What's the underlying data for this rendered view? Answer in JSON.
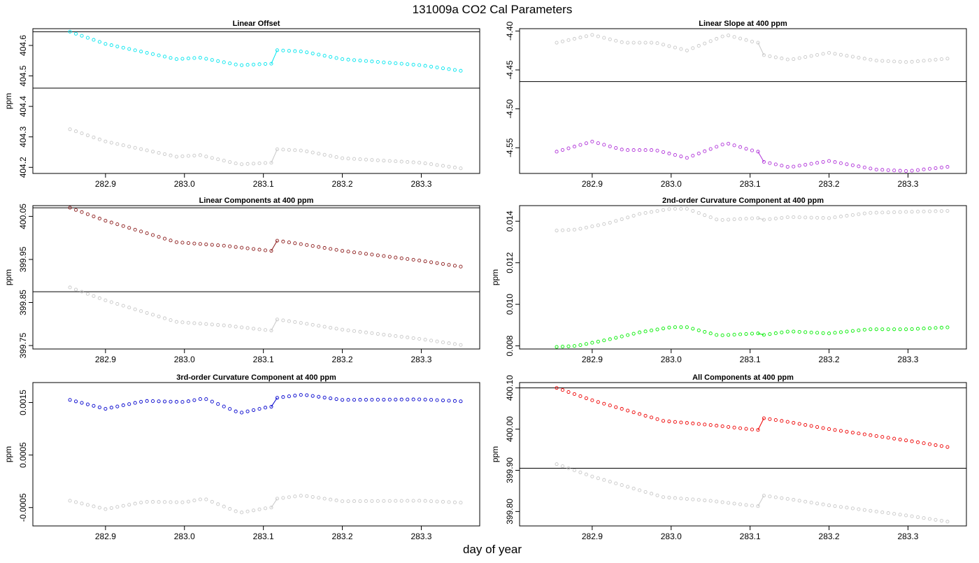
{
  "figure": {
    "title": "131009a   CO2 Cal Parameters",
    "xlabel": "day of year"
  },
  "colors": {
    "gray_series": "#c8c8c8",
    "frame": "#000000",
    "reference_line": "#000000"
  },
  "chart_data": [
    {
      "type": "scatter",
      "title": "Linear Offset",
      "ylabel": "ppm",
      "xlim": [
        282.808,
        283.374
      ],
      "ylim": [
        404.18,
        404.655
      ],
      "xticks": [
        "282.9",
        "283.0",
        "283.1",
        "283.2",
        "283.3"
      ],
      "yticks": [
        "404.2",
        "404.3",
        "404.4",
        "404.5",
        "404.6"
      ],
      "reference_lines": [
        404.46,
        404.645
      ],
      "x_start": 282.855,
      "x_end": 283.355,
      "x_gap": 283.11,
      "series": [
        {
          "color": "#00e5ee",
          "before": [
            [
              282.855,
              404.645
            ],
            [
              282.9,
              404.605
            ],
            [
              282.99,
              404.555
            ],
            [
              283.02,
              404.56
            ],
            [
              283.07,
              404.535
            ],
            [
              283.108,
              404.54
            ]
          ],
          "after": [
            [
              283.112,
              404.585
            ],
            [
              283.15,
              404.58
            ],
            [
              283.2,
              404.555
            ],
            [
              283.3,
              404.535
            ],
            [
              283.355,
              404.515
            ]
          ]
        },
        {
          "color": "#c8c8c8",
          "before": [
            [
              282.855,
              404.325
            ],
            [
              282.9,
              404.285
            ],
            [
              282.99,
              404.235
            ],
            [
              283.02,
              404.24
            ],
            [
              283.07,
              404.21
            ],
            [
              283.108,
              404.215
            ]
          ],
          "after": [
            [
              283.112,
              404.26
            ],
            [
              283.15,
              404.255
            ],
            [
              283.2,
              404.23
            ],
            [
              283.3,
              404.215
            ],
            [
              283.355,
              404.195
            ]
          ]
        }
      ]
    },
    {
      "type": "scatter",
      "title": "Linear Slope at 400 ppm",
      "ylabel": "",
      "xlim": [
        282.808,
        283.374
      ],
      "ylim": [
        -4.583,
        -4.397
      ],
      "xticks": [
        "282.9",
        "283.0",
        "283.1",
        "283.2",
        "283.3"
      ],
      "yticks": [
        "-4.40",
        "-4.45",
        "-4.50",
        "-4.55"
      ],
      "reference_lines": [
        -4.465
      ],
      "x_start": 282.855,
      "x_end": 283.355,
      "x_gap": 283.11,
      "series": [
        {
          "color": "#c8c8c8",
          "before": [
            [
              282.855,
              -4.415
            ],
            [
              282.9,
              -4.405
            ],
            [
              282.94,
              -4.415
            ],
            [
              282.98,
              -4.415
            ],
            [
              283.02,
              -4.425
            ],
            [
              283.07,
              -4.405
            ],
            [
              283.108,
              -4.415
            ]
          ],
          "after": [
            [
              283.112,
              -4.43
            ],
            [
              283.15,
              -4.437
            ],
            [
              283.2,
              -4.428
            ],
            [
              283.26,
              -4.438
            ],
            [
              283.3,
              -4.44
            ],
            [
              283.355,
              -4.435
            ]
          ]
        },
        {
          "color": "#b033d9",
          "before": [
            [
              282.855,
              -4.555
            ],
            [
              282.9,
              -4.542
            ],
            [
              282.94,
              -4.553
            ],
            [
              282.98,
              -4.553
            ],
            [
              283.02,
              -4.563
            ],
            [
              283.07,
              -4.544
            ],
            [
              283.108,
              -4.555
            ]
          ],
          "after": [
            [
              283.112,
              -4.567
            ],
            [
              283.15,
              -4.575
            ],
            [
              283.2,
              -4.567
            ],
            [
              283.26,
              -4.578
            ],
            [
              283.3,
              -4.58
            ],
            [
              283.355,
              -4.574
            ]
          ]
        }
      ]
    },
    {
      "type": "scatter",
      "title": "Linear Components at 400 ppm",
      "ylabel": "ppm",
      "xlim": [
        282.808,
        283.374
      ],
      "ylim": [
        399.742,
        400.075
      ],
      "xticks": [
        "282.9",
        "283.0",
        "283.1",
        "283.2",
        "283.3"
      ],
      "yticks": [
        "399.75",
        "399.85",
        "399.95",
        "400.05"
      ],
      "reference_lines": [
        399.875,
        400.07
      ],
      "x_start": 282.855,
      "x_end": 283.355,
      "x_gap": 283.11,
      "series": [
        {
          "color": "#8b1a1a",
          "before": [
            [
              282.855,
              400.07
            ],
            [
              282.9,
              400.04
            ],
            [
              282.99,
              399.99
            ],
            [
              283.05,
              399.982
            ],
            [
              283.108,
              399.97
            ]
          ],
          "after": [
            [
              283.112,
              399.995
            ],
            [
              283.15,
              399.985
            ],
            [
              283.2,
              399.97
            ],
            [
              283.3,
              399.947
            ],
            [
              283.355,
              399.932
            ]
          ]
        },
        {
          "color": "#c8c8c8",
          "before": [
            [
              282.855,
              399.885
            ],
            [
              282.9,
              399.855
            ],
            [
              282.99,
              399.805
            ],
            [
              283.05,
              399.797
            ],
            [
              283.108,
              399.785
            ]
          ],
          "after": [
            [
              283.112,
              399.812
            ],
            [
              283.15,
              399.802
            ],
            [
              283.2,
              399.787
            ],
            [
              283.3,
              399.765
            ],
            [
              283.355,
              399.75
            ]
          ]
        }
      ]
    },
    {
      "type": "scatter",
      "title": "2nd-order Curvature Component at 400 ppm",
      "ylabel": "ppm",
      "xlim": [
        282.808,
        283.374
      ],
      "ylim": [
        0.00785,
        0.01475
      ],
      "xticks": [
        "282.9",
        "283.0",
        "283.1",
        "283.2",
        "283.3"
      ],
      "yticks": [
        "0.008",
        "0.010",
        "0.012",
        "0.014"
      ],
      "reference_lines": [],
      "x_start": 282.855,
      "x_end": 283.355,
      "x_gap": 283.11,
      "series": [
        {
          "color": "#c8c8c8",
          "before": [
            [
              282.855,
              0.01355
            ],
            [
              282.88,
              0.0136
            ],
            [
              282.92,
              0.0139
            ],
            [
              282.96,
              0.01435
            ],
            [
              283.0,
              0.0146
            ],
            [
              283.02,
              0.0146
            ],
            [
              283.06,
              0.01405
            ],
            [
              283.108,
              0.01415
            ]
          ],
          "after": [
            [
              283.112,
              0.01405
            ],
            [
              283.15,
              0.0142
            ],
            [
              283.2,
              0.01415
            ],
            [
              283.25,
              0.0144
            ],
            [
              283.3,
              0.01445
            ],
            [
              283.355,
              0.0145
            ]
          ]
        },
        {
          "color": "#00ee00",
          "before": [
            [
              282.855,
              0.00795
            ],
            [
              282.88,
              0.008
            ],
            [
              282.92,
              0.0083
            ],
            [
              282.96,
              0.00865
            ],
            [
              283.0,
              0.0089
            ],
            [
              283.02,
              0.0089
            ],
            [
              283.06,
              0.0085
            ],
            [
              283.108,
              0.0086
            ]
          ],
          "after": [
            [
              283.112,
              0.0085
            ],
            [
              283.15,
              0.0087
            ],
            [
              283.2,
              0.0086
            ],
            [
              283.25,
              0.0088
            ],
            [
              283.3,
              0.0088
            ],
            [
              283.355,
              0.0089
            ]
          ]
        }
      ]
    },
    {
      "type": "scatter",
      "title": "3rd-order Curvature Component at 400 ppm",
      "ylabel": "ppm",
      "xlim": [
        282.808,
        283.374
      ],
      "ylim": [
        -0.00085,
        0.00188
      ],
      "xticks": [
        "282.9",
        "283.0",
        "283.1",
        "283.2",
        "283.3"
      ],
      "yticks": [
        "-0.0005",
        "0.0005",
        "0.0015"
      ],
      "reference_lines": [],
      "x_start": 282.855,
      "x_end": 283.355,
      "x_gap": 283.11,
      "series": [
        {
          "color": "#0000cd",
          "before": [
            [
              282.855,
              0.00155
            ],
            [
              282.9,
              0.00138
            ],
            [
              282.95,
              0.00153
            ],
            [
              283.0,
              0.00151
            ],
            [
              283.025,
              0.00158
            ],
            [
              283.07,
              0.0013
            ],
            [
              283.108,
              0.00142
            ]
          ],
          "after": [
            [
              283.112,
              0.00158
            ],
            [
              283.15,
              0.00165
            ],
            [
              283.2,
              0.00155
            ],
            [
              283.3,
              0.00156
            ],
            [
              283.355,
              0.00152
            ]
          ]
        },
        {
          "color": "#c8c8c8",
          "before": [
            [
              282.855,
              -0.00037
            ],
            [
              282.9,
              -0.00053
            ],
            [
              282.95,
              -0.00039
            ],
            [
              283.0,
              -0.0004
            ],
            [
              283.025,
              -0.00033
            ],
            [
              283.07,
              -0.0006
            ],
            [
              283.108,
              -0.0005
            ]
          ],
          "after": [
            [
              283.112,
              -0.00034
            ],
            [
              283.15,
              -0.00027
            ],
            [
              283.2,
              -0.00038
            ],
            [
              283.3,
              -0.00037
            ],
            [
              283.355,
              -0.00041
            ]
          ]
        }
      ]
    },
    {
      "type": "scatter",
      "title": "All Components at 400 ppm",
      "ylabel": "ppm",
      "xlim": [
        282.808,
        283.374
      ],
      "ylim": [
        399.765,
        400.113
      ],
      "xticks": [
        "282.9",
        "283.0",
        "283.1",
        "283.2",
        "283.3"
      ],
      "yticks": [
        "399.80",
        "399.90",
        "400.00",
        "400.10"
      ],
      "reference_lines": [
        399.905,
        400.1
      ],
      "x_start": 282.855,
      "x_end": 283.355,
      "x_gap": 283.11,
      "series": [
        {
          "color": "#ee0000",
          "before": [
            [
              282.855,
              400.1
            ],
            [
              282.9,
              400.07
            ],
            [
              282.99,
              400.02
            ],
            [
              283.05,
              400.01
            ],
            [
              283.108,
              399.998
            ]
          ],
          "after": [
            [
              283.112,
              400.028
            ],
            [
              283.15,
              400.017
            ],
            [
              283.2,
              400.0
            ],
            [
              283.3,
              399.972
            ],
            [
              283.355,
              399.955
            ]
          ]
        },
        {
          "color": "#c8c8c8",
          "before": [
            [
              282.855,
              399.915
            ],
            [
              282.9,
              399.885
            ],
            [
              282.99,
              399.835
            ],
            [
              283.05,
              399.826
            ],
            [
              283.108,
              399.813
            ]
          ],
          "after": [
            [
              283.112,
              399.84
            ],
            [
              283.15,
              399.83
            ],
            [
              283.2,
              399.815
            ],
            [
              283.3,
              399.79
            ],
            [
              283.355,
              399.774
            ]
          ]
        }
      ]
    }
  ]
}
